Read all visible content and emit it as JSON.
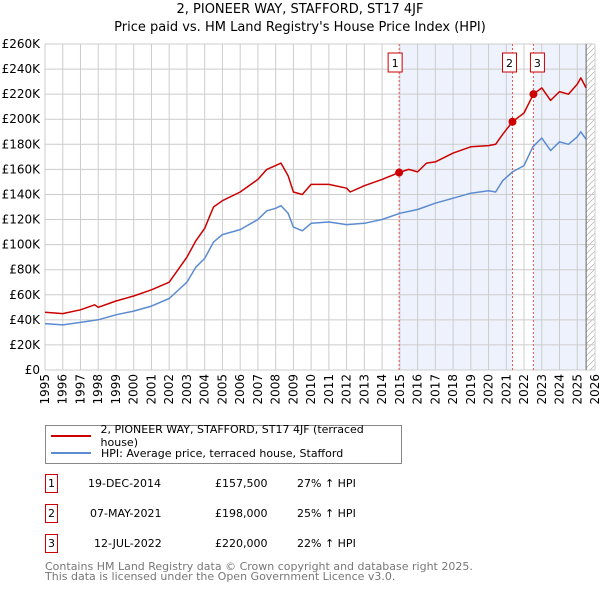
{
  "title_line1": "2, PIONEER WAY, STAFFORD, ST17 4JF",
  "title_line2": "Price paid vs. HM Land Registry's House Price Index (HPI)",
  "chart_data": {
    "type": "line",
    "title": "2, PIONEER WAY, STAFFORD, ST17 4JF — Price paid vs. HM Land Registry's House Price Index (HPI)",
    "xlabel": "",
    "ylabel": "",
    "xlim": [
      1995,
      2026
    ],
    "ylim": [
      0,
      260000
    ],
    "grid": true,
    "x_ticks": [
      "1995",
      "1996",
      "1997",
      "1998",
      "1999",
      "2000",
      "2001",
      "2002",
      "2003",
      "2004",
      "2005",
      "2006",
      "2007",
      "2008",
      "2009",
      "2010",
      "2011",
      "2012",
      "2013",
      "2014",
      "2015",
      "2016",
      "2017",
      "2018",
      "2019",
      "2020",
      "2021",
      "2022",
      "2023",
      "2024",
      "2025",
      "2026"
    ],
    "y_ticks": [
      "£0",
      "£20K",
      "£40K",
      "£60K",
      "£80K",
      "£100K",
      "£120K",
      "£140K",
      "£160K",
      "£180K",
      "£200K",
      "£220K",
      "£240K",
      "£260K"
    ],
    "series": [
      {
        "name": "2, PIONEER WAY, STAFFORD, ST17 4JF (terraced house)",
        "color": "#cc0000",
        "x": [
          1995,
          1996,
          1997,
          1997.8,
          1998,
          1999,
          2000,
          2001,
          2002,
          2003,
          2003.5,
          2004,
          2004.5,
          2005,
          2006,
          2007,
          2007.5,
          2008,
          2008.3,
          2008.7,
          2009,
          2009.5,
          2010,
          2011,
          2012,
          2012.2,
          2013,
          2014,
          2014.96,
          2015.5,
          2016,
          2016.5,
          2017,
          2018,
          2019,
          2020,
          2020.4,
          2020.8,
          2021.35,
          2022,
          2022.53,
          2023,
          2023.5,
          2024,
          2024.5,
          2025,
          2025.2,
          2025.5
        ],
        "y": [
          46000,
          45000,
          48000,
          52000,
          50000,
          55000,
          59000,
          64000,
          70000,
          90000,
          103000,
          113000,
          130000,
          135000,
          142000,
          152000,
          160000,
          163000,
          165000,
          155000,
          142000,
          140000,
          148000,
          148000,
          145000,
          142000,
          147000,
          152000,
          157500,
          160000,
          158000,
          165000,
          166000,
          173000,
          178000,
          179000,
          180000,
          188000,
          198000,
          205000,
          220000,
          225000,
          215000,
          222000,
          220000,
          228000,
          233000,
          225000
        ]
      },
      {
        "name": "HPI: Average price, terraced house, Stafford",
        "color": "#5b8bd0",
        "x": [
          1995,
          1996,
          1997,
          1998,
          1999,
          2000,
          2001,
          2002,
          2003,
          2003.5,
          2004,
          2004.5,
          2005,
          2006,
          2007,
          2007.5,
          2008,
          2008.3,
          2008.7,
          2009,
          2009.5,
          2010,
          2011,
          2012,
          2013,
          2014,
          2015,
          2016,
          2017,
          2018,
          2019,
          2020,
          2020.4,
          2020.8,
          2021.35,
          2022,
          2022.5,
          2023,
          2023.5,
          2024,
          2024.5,
          2025,
          2025.2,
          2025.5
        ],
        "y": [
          37000,
          36000,
          38000,
          40000,
          44000,
          47000,
          51000,
          57000,
          70000,
          82000,
          89000,
          102000,
          108000,
          112000,
          120000,
          127000,
          129000,
          131000,
          125000,
          114000,
          111000,
          117000,
          118000,
          116000,
          117000,
          120000,
          125000,
          128000,
          133000,
          137000,
          141000,
          143000,
          142000,
          151000,
          158000,
          163000,
          178000,
          185000,
          175000,
          182000,
          180000,
          186000,
          190000,
          184000
        ]
      }
    ],
    "sales": [
      {
        "label": "1",
        "x": 2014.96,
        "y": 157500
      },
      {
        "label": "2",
        "x": 2021.35,
        "y": 198000
      },
      {
        "label": "3",
        "x": 2022.53,
        "y": 220000
      }
    ],
    "data_end": 2025.5,
    "legend_position": "below"
  },
  "legend": [
    {
      "label": "2, PIONEER WAY, STAFFORD, ST17 4JF (terraced house)",
      "color": "#cc0000"
    },
    {
      "label": "HPI: Average price, terraced house, Stafford",
      "color": "#5b8bd0"
    }
  ],
  "transactions": [
    {
      "num": "1",
      "date": "19-DEC-2014",
      "price": "£157,500",
      "hpi": "27% ↑ HPI"
    },
    {
      "num": "2",
      "date": "07-MAY-2021",
      "price": "£198,000",
      "hpi": "25% ↑ HPI"
    },
    {
      "num": "3",
      "date": "12-JUL-2022",
      "price": "£220,000",
      "hpi": "22% ↑ HPI"
    }
  ],
  "footer_line1": "Contains HM Land Registry data © Crown copyright and database right 2025.",
  "footer_line2": "This data is licensed under the Open Government Licence v3.0."
}
